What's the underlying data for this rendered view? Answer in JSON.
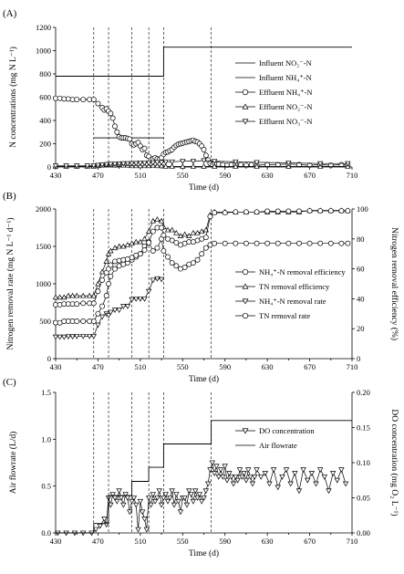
{
  "chart_data": [
    {
      "panel": "(A)",
      "type": "line",
      "xlabel": "Time (d)",
      "ylabel": "N concentrations (mg N L⁻¹)",
      "xlim": [
        430,
        710
      ],
      "ylim": [
        0,
        1200
      ],
      "xticks": [
        430,
        470,
        510,
        550,
        590,
        630,
        670,
        710
      ],
      "yticks": [
        0,
        200,
        400,
        600,
        800,
        1000,
        1200
      ],
      "legend": "right",
      "vlines": [
        466,
        480,
        502,
        518,
        532,
        577
      ],
      "series": [
        {
          "name": "Influent NO₂⁻-N",
          "marker": "none",
          "x": [
            430,
            532,
            532,
            710
          ],
          "y": [
            780,
            780,
            1030,
            1030
          ]
        },
        {
          "name": "Influent NH₄⁺-N",
          "marker": "none",
          "x": [
            466,
            532
          ],
          "y": [
            250,
            250
          ]
        },
        {
          "name": "Effluent NH₄⁺-N",
          "marker": "circle",
          "x": [
            430,
            434,
            438,
            442,
            446,
            450,
            456,
            462,
            466,
            470,
            474,
            476,
            478,
            480,
            482,
            484,
            486,
            488,
            490,
            492,
            494,
            496,
            498,
            500,
            502,
            504,
            506,
            508,
            510,
            512,
            514,
            516,
            518,
            520,
            522,
            524,
            526,
            528,
            530,
            532,
            534,
            536,
            538,
            540,
            542,
            544,
            546,
            548,
            550,
            552,
            554,
            556,
            558,
            560,
            562,
            564,
            566,
            568,
            570,
            572,
            574,
            576,
            578,
            580,
            584,
            588,
            592,
            596,
            600,
            605,
            610,
            615,
            620,
            630,
            640,
            650,
            660,
            670,
            680,
            690,
            700,
            706
          ],
          "y": [
            590,
            590,
            585,
            585,
            580,
            580,
            580,
            580,
            580,
            545,
            510,
            490,
            500,
            480,
            460,
            420,
            350,
            300,
            260,
            250,
            250,
            250,
            245,
            240,
            200,
            190,
            200,
            210,
            180,
            150,
            160,
            100,
            90,
            60,
            70,
            80,
            70,
            65,
            80,
            110,
            125,
            130,
            140,
            150,
            170,
            185,
            195,
            200,
            205,
            210,
            215,
            220,
            225,
            230,
            220,
            215,
            200,
            180,
            150,
            100,
            60,
            30,
            20,
            30,
            25,
            20,
            15,
            20,
            25,
            20,
            15,
            20,
            15,
            20,
            20,
            25,
            20,
            15,
            20,
            15,
            20,
            15
          ]
        },
        {
          "name": "Effluent NO₂⁻-N",
          "marker": "triangle-up",
          "x": [
            430,
            440,
            450,
            460,
            466,
            470,
            474,
            478,
            482,
            486,
            490,
            494,
            498,
            502,
            506,
            510,
            514,
            518,
            522,
            526,
            530,
            534,
            540,
            550,
            560,
            570,
            580,
            600,
            620,
            650,
            680,
            706
          ],
          "y": [
            5,
            5,
            5,
            5,
            5,
            10,
            15,
            20,
            18,
            15,
            20,
            15,
            15,
            10,
            10,
            10,
            10,
            10,
            15,
            10,
            10,
            5,
            5,
            5,
            5,
            5,
            5,
            5,
            5,
            5,
            5,
            5
          ]
        },
        {
          "name": "Effluent NO₃⁻-N",
          "marker": "triangle-down",
          "x": [
            430,
            440,
            450,
            460,
            466,
            470,
            474,
            478,
            482,
            486,
            490,
            494,
            498,
            502,
            506,
            510,
            514,
            518,
            522,
            526,
            530,
            534,
            540,
            550,
            560,
            570,
            580,
            600,
            620,
            650,
            680,
            706
          ],
          "y": [
            10,
            10,
            10,
            10,
            12,
            15,
            20,
            22,
            25,
            25,
            28,
            30,
            30,
            30,
            32,
            35,
            35,
            35,
            38,
            40,
            40,
            45,
            45,
            50,
            50,
            55,
            50,
            45,
            40,
            35,
            30,
            30
          ]
        }
      ]
    },
    {
      "panel": "(B)",
      "type": "line",
      "xlabel": "Time (d)",
      "ylabel": "Nitrogen removal rate (mg N L⁻¹ d⁻¹)",
      "y2label": "Nitrogen removal efficiency (%)",
      "xlim": [
        430,
        710
      ],
      "ylim": [
        0,
        2000
      ],
      "y2lim": [
        0,
        100
      ],
      "xticks": [
        430,
        470,
        510,
        550,
        590,
        630,
        670,
        710
      ],
      "yticks": [
        0,
        500,
        1000,
        1500,
        2000
      ],
      "y2ticks": [
        0,
        20,
        40,
        60,
        80,
        100
      ],
      "legend": "right",
      "vlines": [
        466,
        480,
        502,
        518,
        532,
        577
      ],
      "series": [
        {
          "name": "NH₄⁺-N removal efficiency",
          "axis": "right",
          "marker": "circle",
          "x": [
            430,
            434,
            438,
            442,
            446,
            450,
            456,
            462,
            466,
            470,
            474,
            478,
            480,
            482,
            486,
            490,
            494,
            498,
            502,
            506,
            510,
            514,
            518,
            522,
            526,
            530,
            532,
            536,
            540,
            544,
            548,
            552,
            556,
            560,
            564,
            568,
            572,
            576,
            580,
            590,
            600,
            610,
            620,
            630,
            640,
            650,
            660,
            670,
            680,
            690,
            700,
            706
          ],
          "y": [
            24,
            24,
            25,
            25,
            25,
            25,
            25,
            25,
            25,
            30,
            35,
            42,
            50,
            55,
            60,
            62,
            63,
            64,
            66,
            68,
            70,
            75,
            78,
            72,
            74,
            80,
            72,
            68,
            64,
            62,
            60,
            61,
            63,
            64,
            66,
            70,
            74,
            76,
            77,
            77,
            77,
            77,
            77,
            77,
            77,
            77,
            77,
            77,
            77,
            77,
            77,
            77
          ]
        },
        {
          "name": "TN removal efficiency",
          "axis": "right",
          "marker": "triangle-up",
          "x": [
            430,
            434,
            438,
            442,
            446,
            450,
            456,
            462,
            466,
            470,
            474,
            478,
            480,
            482,
            486,
            490,
            494,
            498,
            502,
            506,
            510,
            514,
            518,
            522,
            526,
            530,
            532,
            536,
            540,
            544,
            548,
            552,
            556,
            560,
            564,
            568,
            572,
            576,
            580,
            590,
            600,
            610,
            620,
            630,
            640,
            650,
            660,
            670,
            680,
            690,
            700,
            706
          ],
          "y": [
            41,
            41,
            41,
            42,
            42,
            42,
            42,
            42,
            42,
            50,
            58,
            65,
            70,
            72,
            74,
            75,
            75,
            76,
            77,
            78,
            78,
            80,
            85,
            92,
            93,
            92,
            88,
            86,
            86,
            84,
            82,
            83,
            82,
            84,
            84,
            85,
            86,
            96,
            98,
            98,
            98,
            98,
            98,
            98,
            98,
            98,
            98,
            99,
            99,
            99,
            99,
            99
          ]
        },
        {
          "name": "NH₄⁺-N removal rate",
          "axis": "left",
          "marker": "triangle-down",
          "x": [
            430,
            434,
            438,
            442,
            446,
            450,
            456,
            462,
            466,
            470,
            474,
            478,
            480,
            482,
            486,
            490,
            494,
            498,
            502,
            506,
            510,
            514,
            518,
            522,
            526,
            530
          ],
          "y": [
            290,
            290,
            290,
            295,
            295,
            300,
            300,
            300,
            300,
            450,
            560,
            600,
            580,
            620,
            650,
            650,
            700,
            700,
            790,
            800,
            800,
            800,
            900,
            1050,
            1070,
            1060
          ]
        },
        {
          "name": "TN removal rate",
          "axis": "left",
          "marker": "circle",
          "x": [
            430,
            434,
            438,
            442,
            446,
            450,
            456,
            462,
            466,
            470,
            474,
            478,
            480,
            482,
            486,
            490,
            494,
            498,
            502,
            506,
            510,
            514,
            518,
            522,
            526,
            530,
            532,
            536,
            540,
            544,
            548,
            552,
            556,
            560,
            564,
            568,
            572,
            576,
            580,
            590,
            600,
            610,
            620,
            630,
            640,
            650,
            660,
            670,
            680,
            690,
            700,
            706
          ],
          "y": [
            720,
            720,
            730,
            730,
            730,
            730,
            740,
            740,
            740,
            900,
            1050,
            1150,
            1200,
            1250,
            1300,
            1310,
            1320,
            1330,
            1350,
            1380,
            1400,
            1450,
            1550,
            1700,
            1750,
            1750,
            1650,
            1600,
            1580,
            1550,
            1520,
            1540,
            1560,
            1560,
            1580,
            1600,
            1620,
            1900,
            1950,
            1950,
            1960,
            1960,
            1960,
            1970,
            1970,
            1970,
            1970,
            1975,
            1975,
            1975,
            1975,
            1975
          ]
        }
      ]
    },
    {
      "panel": "(C)",
      "type": "line",
      "xlabel": "Time (d)",
      "ylabel": "Air flowrate (L/d)",
      "y2label": "DO concentration (mg O₂ L⁻¹)",
      "xlim": [
        430,
        710
      ],
      "ylim": [
        0,
        1.5
      ],
      "y2lim": [
        0,
        0.2
      ],
      "xticks": [
        430,
        470,
        510,
        550,
        590,
        630,
        670,
        710
      ],
      "yticks": [
        0.0,
        0.5,
        1.0,
        1.5
      ],
      "y2ticks": [
        0.0,
        0.05,
        0.1,
        0.15,
        0.2
      ],
      "legend": "right",
      "vlines": [
        466,
        480,
        502,
        518,
        532,
        577
      ],
      "series": [
        {
          "name": "DO concentration",
          "axis": "right",
          "marker": "triangle-down",
          "x": [
            432,
            440,
            448,
            456,
            464,
            468,
            472,
            476,
            478,
            480,
            482,
            484,
            486,
            488,
            490,
            492,
            494,
            496,
            498,
            500,
            502,
            504,
            506,
            508,
            510,
            512,
            514,
            516,
            518,
            520,
            522,
            524,
            526,
            528,
            530,
            532,
            534,
            536,
            538,
            540,
            542,
            544,
            546,
            548,
            550,
            552,
            554,
            556,
            558,
            560,
            562,
            564,
            566,
            568,
            570,
            572,
            574,
            576,
            578,
            580,
            582,
            584,
            586,
            588,
            590,
            592,
            594,
            596,
            598,
            600,
            602,
            604,
            606,
            608,
            610,
            612,
            614,
            616,
            618,
            620,
            624,
            628,
            632,
            636,
            640,
            644,
            648,
            652,
            656,
            660,
            664,
            668,
            672,
            676,
            680,
            684,
            688,
            692,
            696,
            700,
            704
          ],
          "y": [
            0,
            0,
            0,
            0,
            0,
            0.005,
            0.01,
            0.02,
            0.012,
            0.05,
            0.04,
            0.055,
            0.05,
            0.045,
            0.06,
            0.05,
            0.04,
            0.055,
            0.05,
            0.03,
            0.045,
            0.05,
            0.04,
            0.005,
            0.045,
            0.03,
            0.02,
            0.005,
            0.05,
            0.04,
            0.055,
            0.045,
            0.05,
            0.06,
            0.04,
            0.05,
            0.055,
            0.045,
            0.05,
            0.06,
            0.04,
            0.055,
            0.045,
            0.03,
            0.05,
            0.05,
            0.04,
            0.06,
            0.055,
            0.045,
            0.06,
            0.05,
            0.055,
            0.045,
            0.05,
            0.06,
            0.07,
            0.09,
            0.1,
            0.085,
            0.095,
            0.08,
            0.09,
            0.08,
            0.095,
            0.075,
            0.085,
            0.08,
            0.07,
            0.08,
            0.075,
            0.09,
            0.08,
            0.085,
            0.075,
            0.09,
            0.08,
            0.07,
            0.08,
            0.09,
            0.08,
            0.085,
            0.07,
            0.09,
            0.065,
            0.08,
            0.09,
            0.07,
            0.085,
            0.06,
            0.09,
            0.075,
            0.085,
            0.07,
            0.09,
            0.08,
            0.06,
            0.085,
            0.075,
            0.09,
            0.07
          ]
        },
        {
          "name": "Air flowrate",
          "axis": "left",
          "marker": "none",
          "x": [
            430,
            466,
            466,
            480,
            480,
            502,
            502,
            518,
            518,
            532,
            532,
            577,
            577,
            710
          ],
          "y": [
            0,
            0,
            0.1,
            0.1,
            0.4,
            0.4,
            0.55,
            0.55,
            0.7,
            0.7,
            0.95,
            0.95,
            1.2,
            1.2
          ]
        }
      ]
    }
  ]
}
